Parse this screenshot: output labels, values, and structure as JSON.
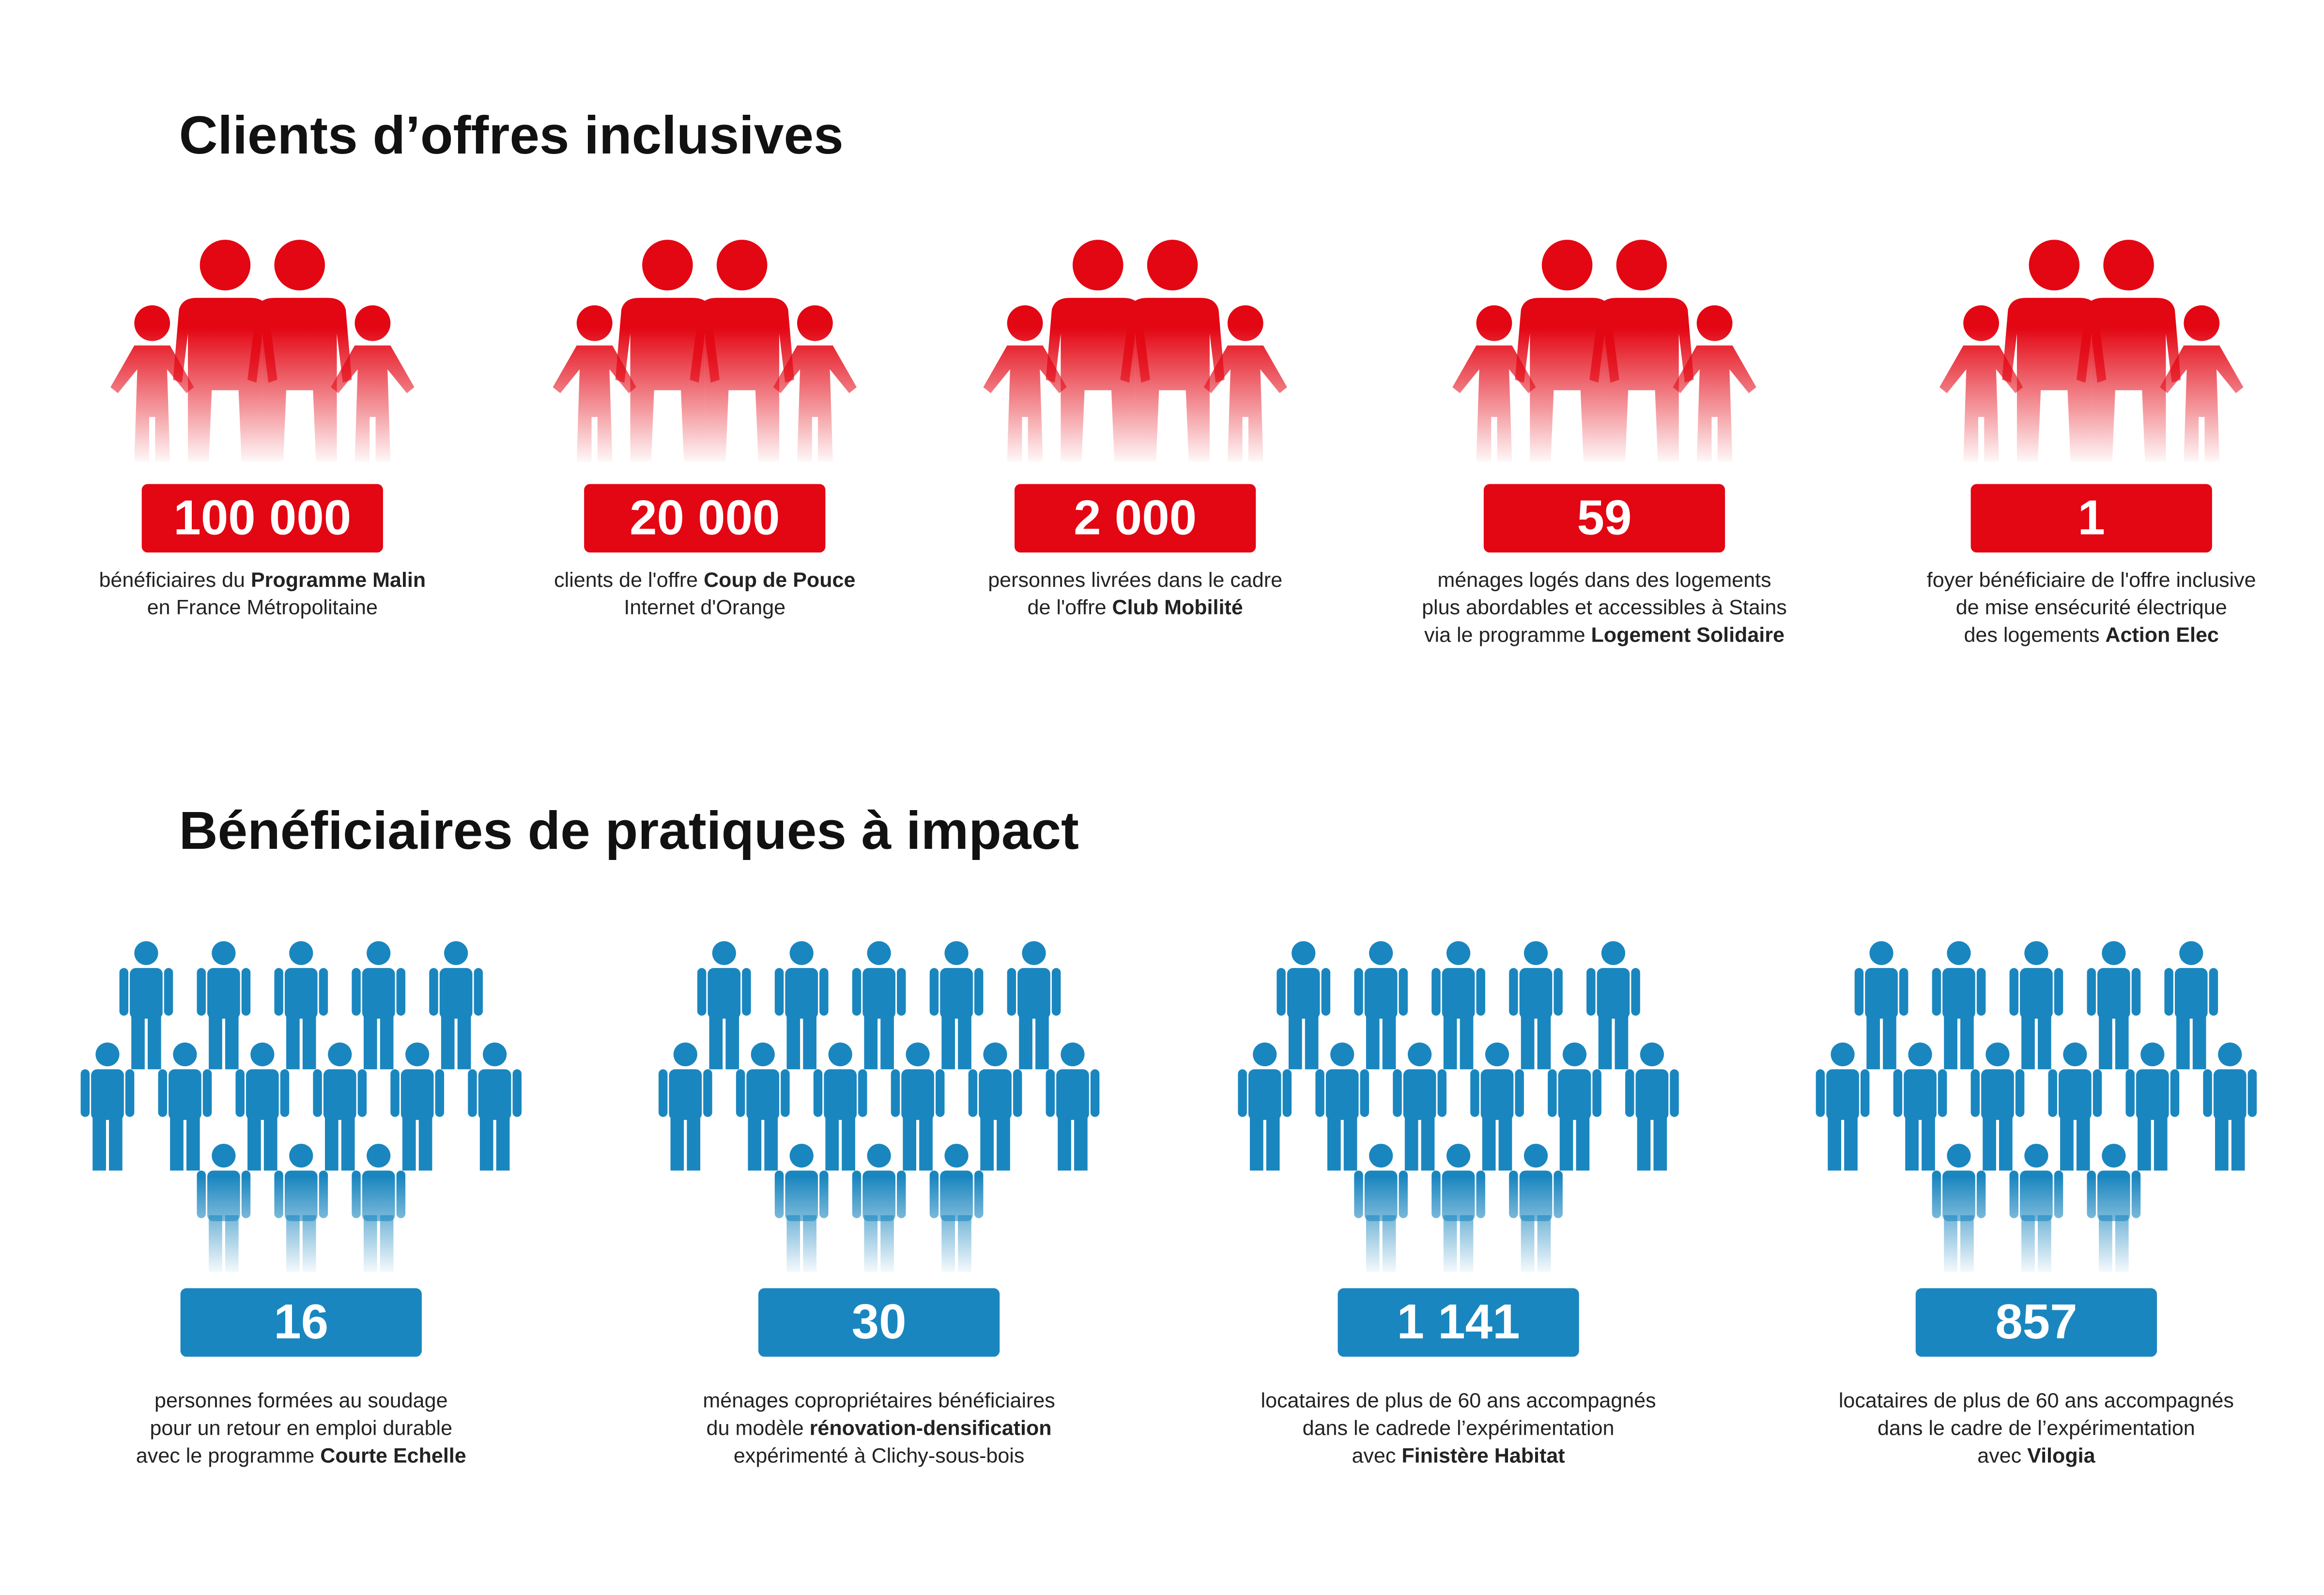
{
  "sections": [
    {
      "title": "Clients d’offres inclusives",
      "color": "#e30613",
      "icon": "family",
      "items": [
        {
          "figure": "100 000",
          "caption": [
            [
              {
                "text": "bénéficiaires du ",
                "bold": false
              },
              {
                "text": "Programme Malin",
                "bold": true
              }
            ],
            [
              {
                "text": "en France Métropolitaine",
                "bold": false
              }
            ]
          ]
        },
        {
          "figure": "20 000",
          "caption": [
            [
              {
                "text": "clients de l'offre ",
                "bold": false
              },
              {
                "text": "Coup de Pouce",
                "bold": true
              }
            ],
            [
              {
                "text": "Internet d'Orange",
                "bold": false
              }
            ]
          ]
        },
        {
          "figure": "2 000",
          "caption": [
            [
              {
                "text": "personnes livrées dans le cadre",
                "bold": false
              }
            ],
            [
              {
                "text": "de l'offre ",
                "bold": false
              },
              {
                "text": "Club Mobilité",
                "bold": true
              }
            ]
          ]
        },
        {
          "figure": "59",
          "caption": [
            [
              {
                "text": "ménages logés dans des logements",
                "bold": false
              }
            ],
            [
              {
                "text": "plus abordables et accessibles à Stains",
                "bold": false
              }
            ],
            [
              {
                "text": "via le programme ",
                "bold": false
              },
              {
                "text": "Logement Solidaire",
                "bold": true
              }
            ]
          ]
        },
        {
          "figure": "1",
          "caption": [
            [
              {
                "text": "foyer bénéficiaire de l'offre inclusive",
                "bold": false
              }
            ],
            [
              {
                "text": "de mise ensécurité électrique",
                "bold": false
              }
            ],
            [
              {
                "text": "des logements ",
                "bold": false
              },
              {
                "text": "Action Elec",
                "bold": true
              }
            ]
          ]
        }
      ]
    },
    {
      "title": "Bénéficiaires de pratiques à impact",
      "color": "#1a86bf",
      "icon": "crowd",
      "items": [
        {
          "figure": "16",
          "caption": [
            [
              {
                "text": "personnes formées au soudage",
                "bold": false
              }
            ],
            [
              {
                "text": "pour un retour en emploi durable",
                "bold": false
              }
            ],
            [
              {
                "text": "avec le programme ",
                "bold": false
              },
              {
                "text": "Courte Echelle",
                "bold": true
              }
            ]
          ]
        },
        {
          "figure": "30",
          "caption": [
            [
              {
                "text": "ménages copropriétaires bénéficiaires",
                "bold": false
              }
            ],
            [
              {
                "text": "du modèle ",
                "bold": false
              },
              {
                "text": "rénovation-densification",
                "bold": true
              }
            ],
            [
              {
                "text": "expérimenté à Clichy-sous-bois",
                "bold": false
              }
            ]
          ]
        },
        {
          "figure": "1 141",
          "caption": [
            [
              {
                "text": "locataires de plus de 60 ans accompagnés",
                "bold": false
              }
            ],
            [
              {
                "text": "dans le cadrede l’expérimentation",
                "bold": false
              }
            ],
            [
              {
                "text": "avec ",
                "bold": false
              },
              {
                "text": "Finistère Habitat",
                "bold": true
              }
            ]
          ]
        },
        {
          "figure": "857",
          "caption": [
            [
              {
                "text": "locataires de plus de 60 ans accompagnés",
                "bold": false
              }
            ],
            [
              {
                "text": "dans le cadre de l’expérimentation",
                "bold": false
              }
            ],
            [
              {
                "text": "avec ",
                "bold": false
              },
              {
                "text": "Vilogia",
                "bold": true
              }
            ]
          ]
        }
      ]
    }
  ]
}
